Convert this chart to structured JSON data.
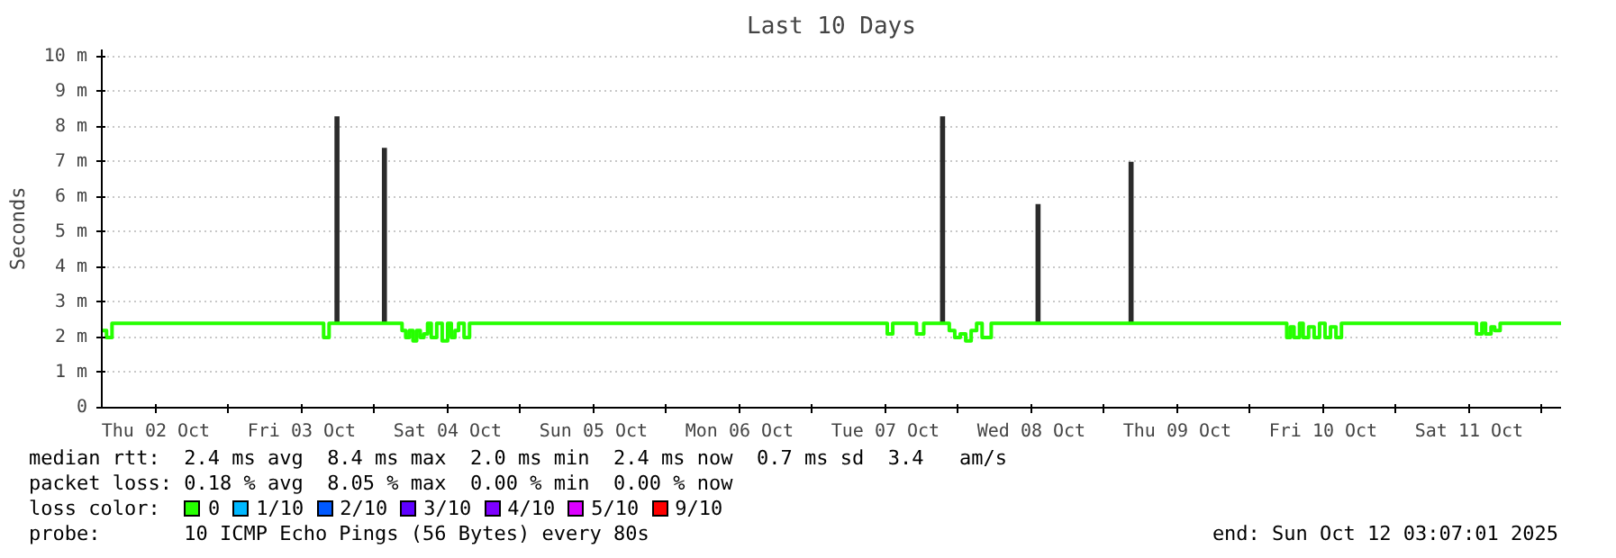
{
  "chart_data": {
    "type": "step",
    "title": "Last 10 Days",
    "ylabel": "Seconds",
    "xlim": [
      "2025-10-02T03:07",
      "2025-10-12T03:07"
    ],
    "xticks": [
      {
        "value": "2025-10-02T12:00",
        "label": "Thu 02 Oct"
      },
      {
        "value": "2025-10-03T00:00",
        "label": null
      },
      {
        "value": "2025-10-03T12:00",
        "label": "Fri 03 Oct"
      },
      {
        "value": "2025-10-04T00:00",
        "label": null
      },
      {
        "value": "2025-10-04T12:00",
        "label": "Sat 04 Oct"
      },
      {
        "value": "2025-10-05T00:00",
        "label": null
      },
      {
        "value": "2025-10-05T12:00",
        "label": "Sun 05 Oct"
      },
      {
        "value": "2025-10-06T00:00",
        "label": null
      },
      {
        "value": "2025-10-06T12:00",
        "label": "Mon 06 Oct"
      },
      {
        "value": "2025-10-07T00:00",
        "label": null
      },
      {
        "value": "2025-10-07T12:00",
        "label": "Tue 07 Oct"
      },
      {
        "value": "2025-10-08T00:00",
        "label": null
      },
      {
        "value": "2025-10-08T12:00",
        "label": "Wed 08 Oct"
      },
      {
        "value": "2025-10-09T00:00",
        "label": null
      },
      {
        "value": "2025-10-09T12:00",
        "label": "Thu 09 Oct"
      },
      {
        "value": "2025-10-10T00:00",
        "label": null
      },
      {
        "value": "2025-10-10T12:00",
        "label": "Fri 10 Oct"
      },
      {
        "value": "2025-10-11T00:00",
        "label": null
      },
      {
        "value": "2025-10-11T12:00",
        "label": "Sat 11 Oct"
      },
      {
        "value": "2025-10-12T00:00",
        "label": null
      }
    ],
    "ylim": [
      0,
      10.2
    ],
    "yticks": [
      0,
      {
        "value": 1,
        "label": "1 m"
      },
      {
        "value": 2,
        "label": "2 m"
      },
      {
        "value": 3,
        "label": "3 m"
      },
      {
        "value": 4,
        "label": "4 m"
      },
      {
        "value": 5,
        "label": "5 m"
      },
      {
        "value": 6,
        "label": "6 m"
      },
      {
        "value": 7,
        "label": "7 m"
      },
      {
        "value": 8,
        "label": "8 m"
      },
      {
        "value": 9,
        "label": "9 m"
      },
      {
        "value": 10,
        "label": "10 m"
      }
    ],
    "grid": true,
    "legend": "bottom",
    "legend_title": "loss color:",
    "series": [
      {
        "type": "bar",
        "color": "#2b2b2b",
        "x": [
          "2025-10-03T17:48",
          "2025-10-04T01:36",
          "2025-10-07T21:24",
          "2025-10-08T13:06",
          "2025-10-09T04:24"
        ],
        "base": [
          2.4,
          2.4,
          2.4,
          2.4,
          2.4
        ],
        "values": [
          5.9,
          5.0,
          5.9,
          3.4,
          4.6
        ]
      },
      {
        "name": "0",
        "color": "#26ff00",
        "x": [
          "2025-10-02T03:07",
          "2025-10-02T03:54",
          "2025-10-02T04:48",
          "2025-10-03T15:36",
          "2025-10-03T16:30",
          "2025-10-04T04:30",
          "2025-10-04T05:06",
          "2025-10-04T05:42",
          "2025-10-04T06:18",
          "2025-10-04T06:54",
          "2025-10-04T07:30",
          "2025-10-04T08:06",
          "2025-10-04T08:42",
          "2025-10-04T09:18",
          "2025-10-04T10:12",
          "2025-10-04T11:06",
          "2025-10-04T12:00",
          "2025-10-04T12:36",
          "2025-10-04T13:12",
          "2025-10-04T13:48",
          "2025-10-04T14:42",
          "2025-10-04T15:36",
          "2025-10-07T12:18",
          "2025-10-07T13:12",
          "2025-10-07T17:06",
          "2025-10-07T18:18",
          "2025-10-07T22:30",
          "2025-10-07T23:24",
          "2025-10-08T00:18",
          "2025-10-08T01:12",
          "2025-10-08T02:06",
          "2025-10-08T03:00",
          "2025-10-08T03:54",
          "2025-10-08T04:48",
          "2025-10-08T05:24",
          "2025-10-10T06:00",
          "2025-10-10T06:36",
          "2025-10-10T07:12",
          "2025-10-10T08:06",
          "2025-10-10T08:42",
          "2025-10-10T09:36",
          "2025-10-10T10:30",
          "2025-10-10T11:24",
          "2025-10-10T12:18",
          "2025-10-10T13:12",
          "2025-10-10T14:06",
          "2025-10-10T15:00",
          "2025-10-11T13:12",
          "2025-10-11T14:06",
          "2025-10-11T14:42",
          "2025-10-11T15:36",
          "2025-10-11T16:12",
          "2025-10-11T17:06",
          "2025-10-12T03:07"
        ],
        "values": [
          2.2,
          2.0,
          2.4,
          2.0,
          2.4,
          2.2,
          2.0,
          2.2,
          1.9,
          2.2,
          2.0,
          2.1,
          2.4,
          2.0,
          2.4,
          1.9,
          2.4,
          2.0,
          2.2,
          2.4,
          2.0,
          2.4,
          2.1,
          2.4,
          2.1,
          2.4,
          2.2,
          2.0,
          2.1,
          1.9,
          2.2,
          2.4,
          2.0,
          2.0,
          2.4,
          2.0,
          2.3,
          2.0,
          2.4,
          2.0,
          2.3,
          2.0,
          2.4,
          2.0,
          2.3,
          2.0,
          2.4,
          2.1,
          2.4,
          2.1,
          2.3,
          2.2,
          2.4,
          2.4
        ]
      },
      {
        "name": "1/10",
        "color": "#00b8ff"
      },
      {
        "name": "2/10",
        "color": "#0059ff"
      },
      {
        "name": "3/10",
        "color": "#5e00ff"
      },
      {
        "name": "4/10",
        "color": "#7e00ff"
      },
      {
        "name": "5/10",
        "color": "#dd00ff"
      },
      {
        "name": "9/10",
        "color": "#ff0000"
      }
    ],
    "annotations": [
      "median rtt:  2.4 ms avg  8.4 ms max  2.0 ms min  2.4 ms now  0.7 ms sd  3.4   am/s",
      "packet loss: 0.18 % avg  8.05 % max  0.00 % min  0.00 % now",
      "probe:       10 ICMP Echo Pings (56 Bytes) every 80s",
      "end: Sun Oct 12 03:07:01 2025"
    ]
  }
}
